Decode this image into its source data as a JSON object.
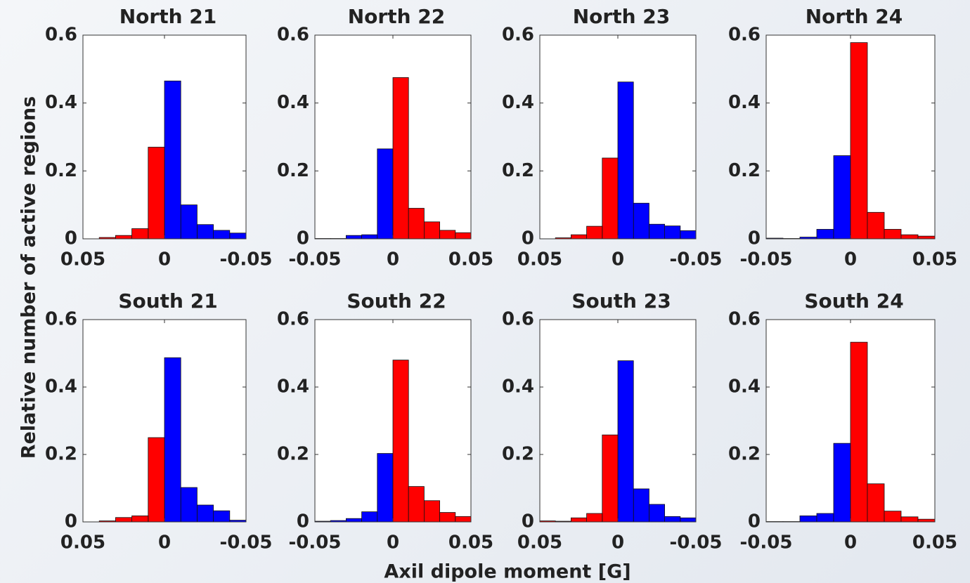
{
  "ylabel": "Relative number of active regions",
  "xlabel": "Axil dipole moment [G]",
  "chart_data": [
    {
      "type": "histogram",
      "title": "North 21",
      "bins": [
        -0.05,
        -0.04,
        -0.03,
        -0.02,
        -0.01,
        0,
        0.01,
        0.02,
        0.03,
        0.04,
        0.05
      ],
      "values": [
        0.017,
        0.025,
        0.042,
        0.1,
        0.465,
        0.27,
        0.03,
        0.01,
        0.004,
        0
      ],
      "colors": [
        "#0000ff",
        "#0000ff",
        "#0000ff",
        "#0000ff",
        "#0000ff",
        "#ff0000",
        "#ff0000",
        "#ff0000",
        "#ff0000",
        "#ff0000"
      ],
      "xlim": [
        0.05,
        -0.05
      ],
      "xticks": [
        0.05,
        0,
        -0.05
      ],
      "ylim": [
        0,
        0.6
      ],
      "yticks": [
        0,
        0.2,
        0.4,
        0.6
      ]
    },
    {
      "type": "histogram",
      "title": "North 22",
      "bins": [
        -0.05,
        -0.04,
        -0.03,
        -0.02,
        -0.01,
        0,
        0.01,
        0.02,
        0.03,
        0.04,
        0.05
      ],
      "values": [
        0.001,
        0.001,
        0.01,
        0.012,
        0.265,
        0.475,
        0.09,
        0.05,
        0.025,
        0.018
      ],
      "colors": [
        "#0000ff",
        "#0000ff",
        "#0000ff",
        "#0000ff",
        "#0000ff",
        "#ff0000",
        "#ff0000",
        "#ff0000",
        "#ff0000",
        "#ff0000"
      ],
      "xlim": [
        -0.05,
        0.05
      ],
      "xticks": [
        -0.05,
        0,
        0.05
      ],
      "ylim": [
        0,
        0.6
      ],
      "yticks": [
        0,
        0.2,
        0.4,
        0.6
      ]
    },
    {
      "type": "histogram",
      "title": "North 23",
      "bins": [
        -0.05,
        -0.04,
        -0.03,
        -0.02,
        -0.01,
        0,
        0.01,
        0.02,
        0.03,
        0.04,
        0.05
      ],
      "values": [
        0.024,
        0.038,
        0.043,
        0.105,
        0.462,
        0.238,
        0.037,
        0.012,
        0.003,
        0
      ],
      "colors": [
        "#0000ff",
        "#0000ff",
        "#0000ff",
        "#0000ff",
        "#0000ff",
        "#ff0000",
        "#ff0000",
        "#ff0000",
        "#ff0000",
        "#ff0000"
      ],
      "xlim": [
        0.05,
        -0.05
      ],
      "xticks": [
        0.05,
        0,
        -0.05
      ],
      "ylim": [
        0,
        0.6
      ],
      "yticks": [
        0,
        0.2,
        0.4,
        0.6
      ]
    },
    {
      "type": "histogram",
      "title": "North 24",
      "bins": [
        -0.05,
        -0.04,
        -0.03,
        -0.02,
        -0.01,
        0,
        0.01,
        0.02,
        0.03,
        0.04,
        0.05
      ],
      "values": [
        0.002,
        0.001,
        0.005,
        0.028,
        0.245,
        0.578,
        0.078,
        0.028,
        0.012,
        0.008
      ],
      "colors": [
        "#0000ff",
        "#0000ff",
        "#0000ff",
        "#0000ff",
        "#0000ff",
        "#ff0000",
        "#ff0000",
        "#ff0000",
        "#ff0000",
        "#ff0000"
      ],
      "xlim": [
        -0.05,
        0.05
      ],
      "xticks": [
        -0.05,
        0,
        0.05
      ],
      "ylim": [
        0,
        0.6
      ],
      "yticks": [
        0,
        0.2,
        0.4,
        0.6
      ]
    },
    {
      "type": "histogram",
      "title": "South 21",
      "bins": [
        -0.05,
        -0.04,
        -0.03,
        -0.02,
        -0.01,
        0,
        0.01,
        0.02,
        0.03,
        0.04,
        0.05
      ],
      "values": [
        0.005,
        0.033,
        0.05,
        0.102,
        0.487,
        0.25,
        0.018,
        0.013,
        0.003,
        0
      ],
      "colors": [
        "#0000ff",
        "#0000ff",
        "#0000ff",
        "#0000ff",
        "#0000ff",
        "#ff0000",
        "#ff0000",
        "#ff0000",
        "#ff0000",
        "#ff0000"
      ],
      "xlim": [
        0.05,
        -0.05
      ],
      "xticks": [
        0.05,
        0,
        -0.05
      ],
      "ylim": [
        0,
        0.6
      ],
      "yticks": [
        0,
        0.2,
        0.4,
        0.6
      ]
    },
    {
      "type": "histogram",
      "title": "South 22",
      "bins": [
        -0.05,
        -0.04,
        -0.03,
        -0.02,
        -0.01,
        0,
        0.01,
        0.02,
        0.03,
        0.04,
        0.05
      ],
      "values": [
        0.002,
        0.004,
        0.01,
        0.03,
        0.203,
        0.48,
        0.105,
        0.063,
        0.028,
        0.016
      ],
      "colors": [
        "#0000ff",
        "#0000ff",
        "#0000ff",
        "#0000ff",
        "#0000ff",
        "#ff0000",
        "#ff0000",
        "#ff0000",
        "#ff0000",
        "#ff0000"
      ],
      "xlim": [
        -0.05,
        0.05
      ],
      "xticks": [
        -0.05,
        0,
        0.05
      ],
      "ylim": [
        0,
        0.6
      ],
      "yticks": [
        0,
        0.2,
        0.4,
        0.6
      ]
    },
    {
      "type": "histogram",
      "title": "South 23",
      "bins": [
        -0.05,
        -0.04,
        -0.03,
        -0.02,
        -0.01,
        0,
        0.01,
        0.02,
        0.03,
        0.04,
        0.05
      ],
      "values": [
        0.012,
        0.016,
        0.052,
        0.098,
        0.478,
        0.258,
        0.025,
        0.012,
        0.002,
        0.003
      ],
      "colors": [
        "#0000ff",
        "#0000ff",
        "#0000ff",
        "#0000ff",
        "#0000ff",
        "#ff0000",
        "#ff0000",
        "#ff0000",
        "#ff0000",
        "#ff0000"
      ],
      "xlim": [
        0.05,
        -0.05
      ],
      "xticks": [
        0.05,
        0,
        -0.05
      ],
      "ylim": [
        0,
        0.6
      ],
      "yticks": [
        0,
        0.2,
        0.4,
        0.6
      ]
    },
    {
      "type": "histogram",
      "title": "South 24",
      "bins": [
        -0.05,
        -0.04,
        -0.03,
        -0.02,
        -0.01,
        0,
        0.01,
        0.02,
        0.03,
        0.04,
        0.05
      ],
      "values": [
        0.001,
        0.001,
        0.018,
        0.025,
        0.233,
        0.533,
        0.113,
        0.032,
        0.015,
        0.008
      ],
      "colors": [
        "#0000ff",
        "#0000ff",
        "#0000ff",
        "#0000ff",
        "#0000ff",
        "#ff0000",
        "#ff0000",
        "#ff0000",
        "#ff0000",
        "#ff0000"
      ],
      "xlim": [
        -0.05,
        0.05
      ],
      "xticks": [
        -0.05,
        0,
        0.05
      ],
      "ylim": [
        0,
        0.6
      ],
      "yticks": [
        0,
        0.2,
        0.4,
        0.6
      ]
    }
  ]
}
